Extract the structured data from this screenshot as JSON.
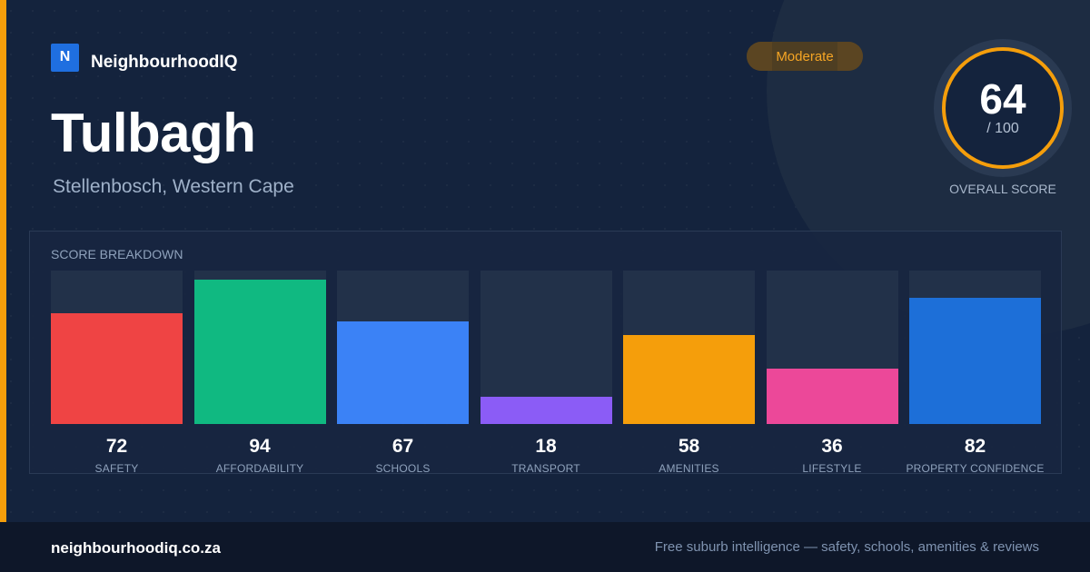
{
  "brand": {
    "logo_letter": "N",
    "name": "NeighbourhoodIQ"
  },
  "suburb": {
    "name": "Tulbagh",
    "region": "Stellenbosch, Western Cape"
  },
  "rating_badge": "Moderate",
  "overall_score": {
    "value": "64",
    "max": "/ 100",
    "label": "OVERALL SCORE",
    "fraction": 0.64
  },
  "breakdown": {
    "title": "SCORE BREAKDOWN",
    "items": [
      {
        "label": "SAFETY",
        "value": 72,
        "color": "#ef4444"
      },
      {
        "label": "AFFORDABILITY",
        "value": 94,
        "color": "#10b981"
      },
      {
        "label": "SCHOOLS",
        "value": 67,
        "color": "#3b82f6"
      },
      {
        "label": "TRANSPORT",
        "value": 18,
        "color": "#8b5cf6"
      },
      {
        "label": "AMENITIES",
        "value": 58,
        "color": "#f59e0b"
      },
      {
        "label": "LIFESTYLE",
        "value": 36,
        "color": "#ec4899"
      },
      {
        "label": "PROPERTY CONFIDENCE",
        "value": 82,
        "color": "#1d6fd8"
      }
    ]
  },
  "footer": {
    "url": "neighbourhoodiq.co.za",
    "tagline": "Free suburb intelligence — safety, schools, amenities & reviews"
  },
  "colors": {
    "accent": "#f59e0b",
    "background": "#14233d",
    "brand_blue": "#1f6fe0"
  }
}
